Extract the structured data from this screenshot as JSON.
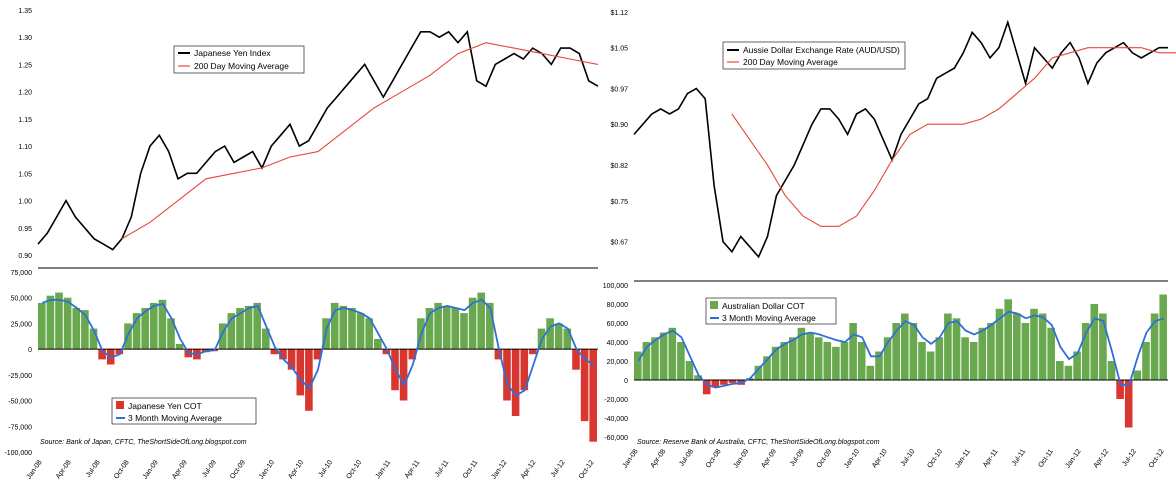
{
  "colors": {
    "price_line": "#000000",
    "moving_avg": "#e8463a",
    "cot_pos": "#6aa84f",
    "cot_neg": "#d8372f",
    "cot_ma": "#2f6fd6",
    "axis": "#000000"
  },
  "chart_data": [
    {
      "id": "jpy_price",
      "type": "line",
      "title": "",
      "ylim": [
        0.9,
        1.35
      ],
      "yticks": [
        0.9,
        0.95,
        1.0,
        1.05,
        1.1,
        1.15,
        1.2,
        1.25,
        1.3,
        1.35
      ],
      "ytick_labels": [
        "0.90",
        "0.95",
        "1.00",
        "1.05",
        "1.10",
        "1.15",
        "1.20",
        "1.25",
        "1.30",
        "1.35"
      ],
      "legend": [
        "Japanese Yen Index",
        "200 Day Moving Average"
      ],
      "series": [
        {
          "name": "Japanese Yen Index",
          "t": [
            0,
            1,
            2,
            3,
            4,
            5,
            6,
            7,
            8,
            9,
            10,
            11,
            12,
            13,
            14,
            15,
            16,
            17,
            18,
            19,
            20,
            21,
            22,
            23,
            24,
            25,
            26,
            27,
            28,
            29,
            30,
            31,
            32,
            33,
            34,
            35,
            36,
            37,
            38,
            39,
            40,
            41,
            42,
            43,
            44,
            45,
            46,
            47,
            48,
            49,
            50,
            51,
            52,
            53,
            54,
            55,
            56,
            57,
            58,
            59,
            60
          ],
          "values": [
            0.92,
            0.94,
            0.97,
            1.0,
            0.97,
            0.95,
            0.93,
            0.92,
            0.91,
            0.93,
            0.97,
            1.05,
            1.1,
            1.12,
            1.09,
            1.04,
            1.05,
            1.05,
            1.07,
            1.09,
            1.1,
            1.07,
            1.08,
            1.09,
            1.06,
            1.1,
            1.12,
            1.14,
            1.1,
            1.11,
            1.14,
            1.17,
            1.19,
            1.21,
            1.23,
            1.25,
            1.22,
            1.19,
            1.22,
            1.25,
            1.28,
            1.31,
            1.31,
            1.3,
            1.31,
            1.29,
            1.31,
            1.22,
            1.21,
            1.25,
            1.26,
            1.27,
            1.26,
            1.28,
            1.27,
            1.25,
            1.28,
            1.28,
            1.27,
            1.22,
            1.21
          ]
        },
        {
          "name": "200 Day Moving Average",
          "t": [
            9,
            12,
            15,
            18,
            21,
            24,
            27,
            30,
            33,
            36,
            39,
            42,
            45,
            48,
            51,
            54,
            57,
            60
          ],
          "values": [
            0.93,
            0.96,
            1.0,
            1.04,
            1.05,
            1.06,
            1.08,
            1.09,
            1.13,
            1.17,
            1.2,
            1.23,
            1.27,
            1.29,
            1.28,
            1.27,
            1.26,
            1.25
          ]
        }
      ]
    },
    {
      "id": "jpy_cot",
      "type": "bar",
      "ylim": [
        -100000,
        75000
      ],
      "yticks": [
        -100000,
        -75000,
        -50000,
        -25000,
        0,
        25000,
        50000,
        75000
      ],
      "ytick_labels": [
        "-100,000",
        "-75,000",
        "-50,000",
        "-25,000",
        "0",
        "25,000",
        "50,000",
        "75,000"
      ],
      "legend": [
        "Japanese Yen COT",
        "3 Month Moving Average"
      ],
      "source": "Source: Bank of Japan, CFTC, TheShortSideOfLong.blogspot.com",
      "xtick_labels": [
        "Jan-08",
        "Apr-08",
        "Jul-08",
        "Oct-08",
        "Jan-09",
        "Apr-09",
        "Jul-09",
        "Oct-09",
        "Jan-10",
        "Apr-10",
        "Jul-10",
        "Oct-10",
        "Jan-11",
        "Apr-11",
        "Jul-11",
        "Oct-11",
        "Jan-12",
        "Apr-12",
        "Jul-12",
        "Oct-12"
      ],
      "values": [
        45000,
        52000,
        55000,
        50000,
        40000,
        38000,
        20000,
        -10000,
        -15000,
        -5000,
        25000,
        35000,
        40000,
        45000,
        48000,
        30000,
        5000,
        -8000,
        -10000,
        -3000,
        -2000,
        25000,
        35000,
        40000,
        42000,
        45000,
        20000,
        -5000,
        -10000,
        -20000,
        -45000,
        -60000,
        -10000,
        30000,
        45000,
        42000,
        40000,
        35000,
        30000,
        10000,
        -5000,
        -40000,
        -50000,
        -10000,
        30000,
        40000,
        45000,
        42000,
        40000,
        35000,
        50000,
        55000,
        45000,
        -10000,
        -50000,
        -65000,
        -40000,
        -5000,
        20000,
        30000,
        25000,
        20000,
        -20000,
        -70000,
        -90000
      ],
      "ma": [
        45000,
        48000,
        48000,
        46000,
        40000,
        33000,
        18000,
        -2000,
        -8000,
        -5000,
        15000,
        30000,
        37000,
        42000,
        44000,
        30000,
        10000,
        -4000,
        -5000,
        -2000,
        -1000,
        17000,
        30000,
        35000,
        40000,
        42000,
        22000,
        2000,
        -10000,
        -18000,
        -30000,
        -38000,
        -20000,
        20000,
        38000,
        40000,
        38000,
        35000,
        30000,
        15000,
        0,
        -20000,
        -35000,
        -15000,
        15000,
        35000,
        40000,
        42000,
        40000,
        38000,
        45000,
        48000,
        40000,
        0,
        -35000,
        -45000,
        -40000,
        -15000,
        10000,
        22000,
        25000,
        20000,
        0,
        -10000,
        -15000
      ]
    },
    {
      "id": "aud_price",
      "type": "line",
      "ylim": [
        0.63,
        1.12
      ],
      "yticks": [
        0.67,
        0.75,
        0.82,
        0.9,
        0.97,
        1.05,
        1.12
      ],
      "ytick_labels": [
        "$0.67",
        "$0.75",
        "$0.82",
        "$0.90",
        "$0.97",
        "$1.05",
        "$1.12"
      ],
      "legend": [
        "Aussie Dollar Exchange Rate (AUD/USD)",
        "200 Day Moving Average"
      ],
      "series": [
        {
          "name": "Aussie Dollar Exchange Rate (AUD/USD)",
          "t": [
            0,
            1,
            2,
            3,
            4,
            5,
            6,
            7,
            8,
            9,
            10,
            11,
            12,
            13,
            14,
            15,
            16,
            17,
            18,
            19,
            20,
            21,
            22,
            23,
            24,
            25,
            26,
            27,
            28,
            29,
            30,
            31,
            32,
            33,
            34,
            35,
            36,
            37,
            38,
            39,
            40,
            41,
            42,
            43,
            44,
            45,
            46,
            47,
            48,
            49,
            50,
            51,
            52,
            53,
            54,
            55,
            56,
            57,
            58,
            59,
            60
          ],
          "values": [
            0.88,
            0.9,
            0.92,
            0.93,
            0.92,
            0.93,
            0.96,
            0.97,
            0.95,
            0.78,
            0.67,
            0.65,
            0.68,
            0.66,
            0.64,
            0.68,
            0.76,
            0.79,
            0.82,
            0.86,
            0.9,
            0.93,
            0.93,
            0.91,
            0.88,
            0.92,
            0.93,
            0.91,
            0.87,
            0.83,
            0.88,
            0.91,
            0.94,
            0.95,
            0.99,
            1.0,
            1.01,
            1.04,
            1.08,
            1.06,
            1.03,
            1.05,
            1.1,
            1.04,
            0.98,
            1.05,
            1.03,
            1.01,
            1.04,
            1.06,
            1.03,
            0.98,
            1.02,
            1.04,
            1.05,
            1.06,
            1.04,
            1.03,
            1.04,
            1.05,
            1.05
          ]
        },
        {
          "name": "200 Day Moving Average",
          "t": [
            11,
            13,
            15,
            17,
            19,
            21,
            23,
            25,
            27,
            29,
            31,
            33,
            35,
            37,
            39,
            41,
            43,
            45,
            47,
            49,
            51,
            53,
            55,
            57,
            59,
            61
          ],
          "values": [
            0.92,
            0.87,
            0.82,
            0.76,
            0.72,
            0.7,
            0.7,
            0.72,
            0.77,
            0.83,
            0.88,
            0.9,
            0.9,
            0.9,
            0.91,
            0.93,
            0.96,
            0.99,
            1.03,
            1.04,
            1.05,
            1.05,
            1.05,
            1.05,
            1.04,
            1.04
          ]
        }
      ]
    },
    {
      "id": "aud_cot",
      "type": "bar",
      "ylim": [
        -60000,
        100000
      ],
      "yticks": [
        -60000,
        -40000,
        -20000,
        0,
        20000,
        40000,
        60000,
        80000,
        100000
      ],
      "ytick_labels": [
        "-60,000",
        "-40,000",
        "-20,000",
        "0",
        "20,000",
        "40,000",
        "60,000",
        "80,000",
        "100,000"
      ],
      "legend": [
        "Australian Dollar COT",
        "3 Month Moving Average"
      ],
      "source": "Source: Reserve Bank of Australia, CFTC, TheShortSideOfLong.blogspot.com",
      "xtick_labels": [
        "Jan-08",
        "Apr-08",
        "Jul-08",
        "Oct-08",
        "Jan-09",
        "Apr-09",
        "Jul-09",
        "Oct-09",
        "Jan-10",
        "Apr-10",
        "Jul-10",
        "Oct-10",
        "Jan-11",
        "Apr-11",
        "Jul-11",
        "Oct-11",
        "Jan-12",
        "Apr-12",
        "Jul-12",
        "Oct-12"
      ],
      "values": [
        30000,
        40000,
        45000,
        50000,
        55000,
        40000,
        20000,
        5000,
        -15000,
        -8000,
        -5000,
        -3000,
        -5000,
        2000,
        15000,
        25000,
        35000,
        40000,
        45000,
        55000,
        50000,
        45000,
        40000,
        35000,
        40000,
        60000,
        40000,
        15000,
        30000,
        45000,
        60000,
        70000,
        60000,
        40000,
        30000,
        45000,
        70000,
        65000,
        45000,
        40000,
        55000,
        60000,
        75000,
        85000,
        70000,
        60000,
        75000,
        70000,
        55000,
        20000,
        15000,
        30000,
        60000,
        80000,
        70000,
        20000,
        -20000,
        -50000,
        10000,
        40000,
        70000,
        90000
      ],
      "ma": [
        20000,
        35000,
        42000,
        48000,
        52000,
        45000,
        25000,
        5000,
        -5000,
        -8000,
        -6000,
        -4000,
        -3000,
        2000,
        12000,
        22000,
        32000,
        38000,
        42000,
        48000,
        50000,
        48000,
        45000,
        42000,
        40000,
        48000,
        45000,
        25000,
        25000,
        40000,
        52000,
        62000,
        58000,
        45000,
        38000,
        45000,
        60000,
        62000,
        52000,
        48000,
        52000,
        58000,
        65000,
        72000,
        70000,
        65000,
        68000,
        66000,
        58000,
        35000,
        22000,
        28000,
        50000,
        65000,
        62000,
        30000,
        -5000,
        -5000,
        25000,
        50000,
        62000,
        65000
      ]
    }
  ]
}
